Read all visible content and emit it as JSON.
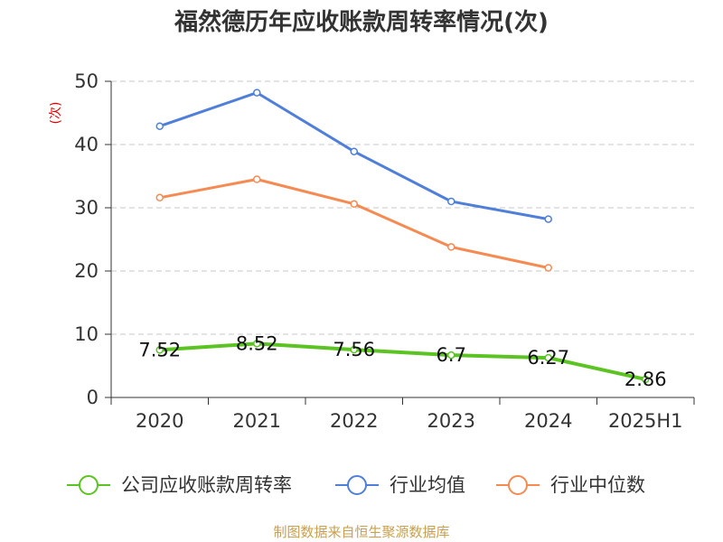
{
  "chart_data": {
    "type": "line",
    "title": "福然德历年应收账款周转率情况(次)",
    "ylabel": "(次)",
    "categories": [
      "2020",
      "2021",
      "2022",
      "2023",
      "2024",
      "2025H1"
    ],
    "y_ticks": [
      "0",
      "10",
      "20",
      "30",
      "40",
      "50"
    ],
    "ylim": [
      0,
      50
    ],
    "grid": true,
    "legend_position": "bottom",
    "series": [
      {
        "name": "公司应收账款周转率",
        "color": "#5cc422",
        "values": [
          7.52,
          8.52,
          7.56,
          6.7,
          6.27,
          2.86
        ],
        "labels": [
          "7.52",
          "8.52",
          "7.56",
          "6.7",
          "6.27",
          "2.86"
        ]
      },
      {
        "name": "行业均值",
        "color": "#4f7fd8",
        "values": [
          42.9,
          48.2,
          38.9,
          31.0,
          28.2,
          null
        ]
      },
      {
        "name": "行业中位数",
        "color": "#f58a52",
        "values": [
          31.6,
          34.5,
          30.6,
          23.8,
          20.5,
          null
        ]
      }
    ],
    "source": "制图数据来自恒生聚源数据库"
  }
}
